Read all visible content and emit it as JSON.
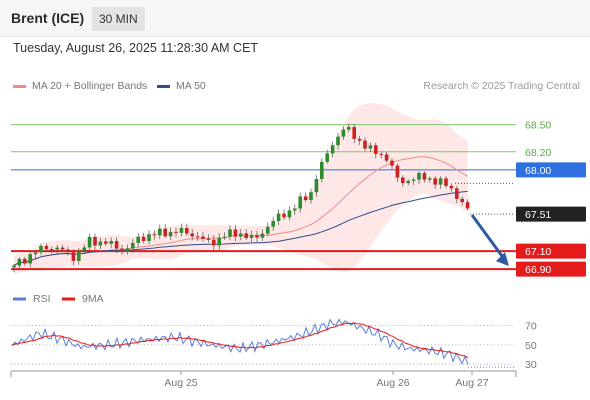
{
  "header": {
    "instrument": "Brent (ICE)",
    "period": "30 MIN",
    "datetime": "Tuesday, August 26, 2025 11:28:30 AM CET"
  },
  "legend": {
    "items": [
      {
        "label": "MA 20 + Bollinger Bands",
        "color": "#f08a8a"
      },
      {
        "label": "MA 50",
        "color": "#2d4e8c"
      }
    ],
    "copyright": "Research © 2025 Trading Central"
  },
  "chart_data": [
    {
      "type": "candlestick",
      "ylim": [
        66.78,
        68.74
      ],
      "x_labels": [
        "Aug 25",
        "Aug 26",
        "Aug 27"
      ],
      "levels": [
        {
          "value": 68.5,
          "label": "68.50",
          "color": "#7ec46a",
          "kind": "resistance"
        },
        {
          "value": 68.2,
          "label": "68.20",
          "color": "#7ec46a",
          "kind": "resistance"
        },
        {
          "value": 68.0,
          "label": "68.00",
          "color": "#2f6fe0",
          "kind": "pivot"
        },
        {
          "value": 67.1,
          "label": "67.10",
          "color": "#e31b1b",
          "kind": "support"
        },
        {
          "value": 66.9,
          "label": "66.90",
          "color": "#e31b1b",
          "kind": "support"
        }
      ],
      "last_price": {
        "value": 67.51,
        "label": "67.51"
      },
      "projection": {
        "direction": "down",
        "target": 66.9
      }
    },
    {
      "type": "line",
      "ylim": [
        25,
        80
      ],
      "series": [
        {
          "name": "RSI",
          "color": "#5b7fd6"
        },
        {
          "name": "9MA",
          "color": "#e31b1b"
        }
      ],
      "y_ticks": [
        {
          "value": 70,
          "label": "70"
        },
        {
          "value": 50,
          "label": "50"
        },
        {
          "value": 30,
          "label": "30"
        }
      ]
    }
  ]
}
